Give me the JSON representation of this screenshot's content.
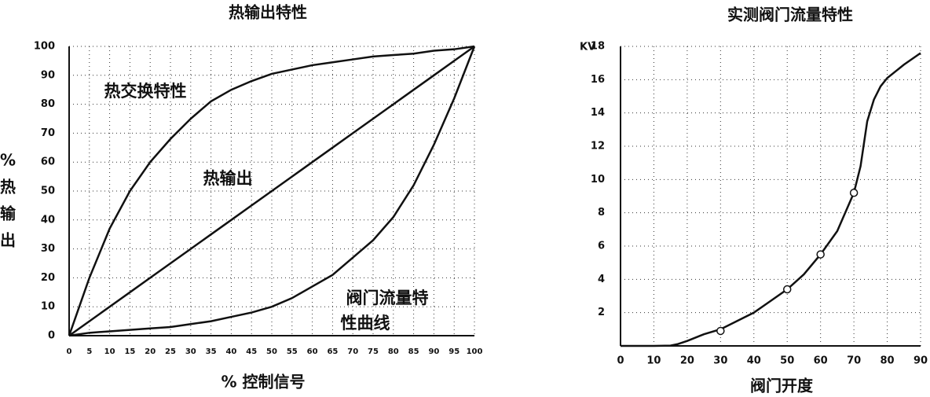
{
  "chart_data": [
    {
      "type": "line",
      "title": "热输出特性",
      "x_label": "% 控制信号",
      "y_label": [
        "%",
        "热",
        "输",
        "出"
      ],
      "x": [
        0,
        5,
        10,
        15,
        20,
        25,
        30,
        35,
        40,
        45,
        50,
        55,
        60,
        65,
        70,
        75,
        80,
        85,
        90,
        95,
        100
      ],
      "xlim": [
        0,
        100
      ],
      "ylim": [
        0,
        100
      ],
      "xticks": [
        0,
        5,
        10,
        15,
        20,
        25,
        30,
        35,
        40,
        45,
        50,
        55,
        60,
        65,
        70,
        75,
        80,
        85,
        90,
        95,
        100
      ],
      "yticks": [
        0,
        10,
        20,
        30,
        40,
        50,
        60,
        70,
        80,
        90,
        100
      ],
      "grid": true,
      "series": [
        {
          "color": "#111111",
          "values": [
            0,
            20,
            37,
            50,
            60,
            68,
            75,
            81,
            85,
            88,
            90.5,
            92,
            93.5,
            94.5,
            95.5,
            96.5,
            97,
            97.5,
            98.5,
            99,
            100
          ]
        },
        {
          "color": "#111111",
          "values": [
            0,
            5,
            10,
            15,
            20,
            25,
            30,
            35,
            40,
            45,
            50,
            55,
            60,
            65,
            70,
            75,
            80,
            85,
            90,
            95,
            100
          ]
        },
        {
          "color": "#111111",
          "values": [
            0,
            1,
            1.5,
            2,
            2.5,
            3,
            4,
            5,
            6.5,
            8,
            10,
            13,
            17,
            21,
            27,
            33,
            41,
            52,
            66,
            82,
            100
          ]
        }
      ],
      "annotations": [
        {
          "lines": [
            "热交换特性"
          ]
        },
        {
          "lines": [
            "热输出"
          ]
        },
        {
          "lines": [
            "阀门流量特",
            "性曲线"
          ]
        }
      ]
    },
    {
      "type": "line",
      "title": "实测阀门流量特性",
      "x_label": "阀门开度",
      "y_label": [
        "KV"
      ],
      "xlim": [
        0,
        90
      ],
      "ylim": [
        0,
        18
      ],
      "xticks": [
        0,
        10,
        20,
        30,
        40,
        50,
        60,
        70,
        80,
        90
      ],
      "yticks": [
        2,
        4,
        6,
        8,
        10,
        12,
        14,
        16,
        18
      ],
      "grid": true,
      "series": [
        {
          "color": "#111111",
          "x": [
            0,
            10,
            15,
            17,
            20,
            25,
            30,
            35,
            40,
            45,
            50,
            55,
            60,
            65,
            70,
            72,
            74,
            76,
            78,
            80,
            85,
            90
          ],
          "values": [
            0,
            0,
            0.02,
            0.1,
            0.3,
            0.7,
            1,
            1.5,
            2,
            2.7,
            3.4,
            4.3,
            5.5,
            6.9,
            9.2,
            10.8,
            13.5,
            14.8,
            15.6,
            16.1,
            16.9,
            17.6
          ]
        },
        {
          "color": "#111111",
          "marker": "circle",
          "line": false,
          "x": [
            30,
            50,
            60,
            70
          ],
          "values": [
            0.9,
            3.4,
            5.5,
            9.2
          ]
        }
      ]
    }
  ]
}
